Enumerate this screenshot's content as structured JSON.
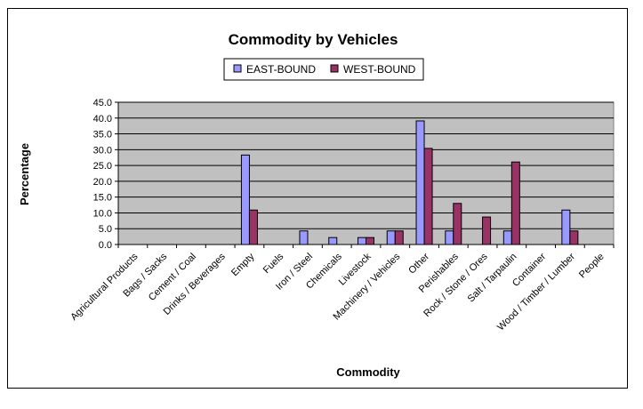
{
  "chart_data": {
    "type": "bar",
    "title": "Commodity by Vehicles",
    "xlabel": "Commodity",
    "ylabel": "Percentage",
    "ylim": [
      0,
      45
    ],
    "yticks": [
      "0.0",
      "5.0",
      "10.0",
      "15.0",
      "20.0",
      "25.0",
      "30.0",
      "35.0",
      "40.0",
      "45.0"
    ],
    "grid": true,
    "legend_position": "top-center",
    "categories": [
      "Agricultural Products",
      "Bags / Sacks",
      "Cement / Coal",
      "Drinks / Beverages",
      "Empty",
      "Fuels",
      "Iron / Steel",
      "Chemicals",
      "Livestock",
      "Machinery / Vehicles",
      "Other",
      "Perishables",
      "Rock / Stone / Ores",
      "Salt / Tarpaulin",
      "Container",
      "Wood / Timber / Lumber",
      "People"
    ],
    "series": [
      {
        "name": "EAST-BOUND",
        "color": "#9999ff",
        "values": [
          0,
          0,
          0,
          0,
          28.3,
          0,
          4.3,
          2.2,
          2.2,
          4.3,
          39.1,
          4.3,
          0,
          4.3,
          0,
          10.9,
          0
        ]
      },
      {
        "name": "WEST-BOUND",
        "color": "#993366",
        "values": [
          0,
          0,
          0,
          0,
          10.9,
          0,
          0,
          0,
          2.2,
          4.3,
          30.4,
          13.0,
          8.7,
          26.1,
          0,
          4.3,
          0
        ]
      }
    ],
    "plot_background": "#c0c0c0"
  }
}
